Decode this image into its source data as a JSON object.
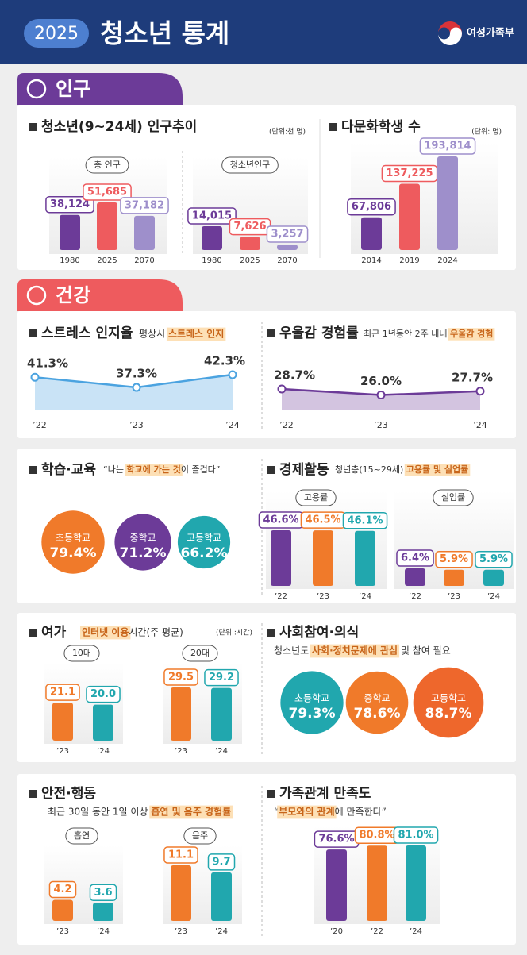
{
  "header": {
    "year": "2025",
    "title": "청소년 통계",
    "ministry": "여성가족부"
  },
  "population": {
    "section": "인구",
    "trend": {
      "type": "bar",
      "title": "청소년(9~24세) 인구추이",
      "unit": "(단위:천 명)",
      "groups": [
        {
          "label": "총 인구",
          "categories": [
            "1980",
            "2025",
            "2070"
          ],
          "values": [
            38124,
            51685,
            37182
          ],
          "value_labels": [
            "38,124",
            "51,685",
            "37,182"
          ],
          "colors": [
            "#6c3b98",
            "#ee5b5e",
            "#9e8fcb"
          ]
        },
        {
          "label": "청소년인구",
          "categories": [
            "1980",
            "2025",
            "2070"
          ],
          "values": [
            14015,
            7626,
            3257
          ],
          "value_labels": [
            "14,015",
            "7,626",
            "3,257"
          ],
          "colors": [
            "#6c3b98",
            "#ee5b5e",
            "#9e8fcb"
          ]
        }
      ]
    },
    "multicultural": {
      "type": "bar",
      "title": "다문화학생 수",
      "unit": "(단위: 명)",
      "groups": [
        {
          "categories": [
            "2014",
            "2019",
            "2024"
          ],
          "values": [
            67806,
            137225,
            193814
          ],
          "value_labels": [
            "67,806",
            "137,225",
            "193,814"
          ],
          "colors": [
            "#6c3b98",
            "#ee5b5e",
            "#9e8fcb"
          ]
        }
      ]
    }
  },
  "health": {
    "section": "건강",
    "stress": {
      "type": "line",
      "title": "스트레스 인지율",
      "note": [
        {
          "text": "평상시 "
        },
        {
          "text": "스트레스 인지",
          "highlight": true
        }
      ],
      "categories": [
        "’22",
        "’23",
        "’24"
      ],
      "values": [
        41.3,
        37.3,
        42.3
      ],
      "value_labels": [
        "41.3%",
        "37.3%",
        "42.3%"
      ],
      "color": "#4ba3e0"
    },
    "depression": {
      "type": "line",
      "title": "우울감 경험률",
      "note": [
        {
          "text": "최근 1년동안 2주 내내 "
        },
        {
          "text": "우울감 경험",
          "highlight": true
        }
      ],
      "categories": [
        "’22",
        "’23",
        "’24"
      ],
      "values": [
        28.7,
        26.0,
        27.7
      ],
      "value_labels": [
        "28.7%",
        "26.0%",
        "27.7%"
      ],
      "color": "#6c3b98"
    }
  },
  "learning": {
    "type": "circle",
    "title": "학습·교육",
    "note": [
      {
        "text": "“나는 "
      },
      {
        "text": "학교에 가는 것",
        "highlight": true
      },
      {
        "text": "이 즐겁다”"
      }
    ],
    "circles": [
      {
        "label": "초등학교",
        "value": 79.4,
        "value_label": "79.4%",
        "color": "#f07a2a"
      },
      {
        "label": "중학교",
        "value": 71.2,
        "value_label": "71.2%",
        "color": "#6c3b98"
      },
      {
        "label": "고등학교",
        "value": 66.2,
        "value_label": "66.2%",
        "color": "#21a7ae"
      }
    ]
  },
  "economy": {
    "type": "bar",
    "title": "경제활동",
    "note": [
      {
        "text": "청년층(15~29세) "
      },
      {
        "text": "고용률 및 실업률",
        "highlight": true
      }
    ],
    "groups": [
      {
        "label": "고용률",
        "categories": [
          "’22",
          "’23",
          "’24"
        ],
        "values": [
          46.6,
          46.5,
          46.1
        ],
        "value_labels": [
          "46.6%",
          "46.5%",
          "46.1%"
        ],
        "colors": [
          "#6c3b98",
          "#f07a2a",
          "#21a7ae"
        ]
      },
      {
        "label": "실업률",
        "categories": [
          "’22",
          "’23",
          "’24"
        ],
        "values": [
          6.4,
          5.9,
          5.9
        ],
        "value_labels": [
          "6.4%",
          "5.9%",
          "5.9%"
        ],
        "colors": [
          "#6c3b98",
          "#f07a2a",
          "#21a7ae"
        ]
      }
    ]
  },
  "leisure": {
    "type": "bar",
    "title": "여가",
    "note": [
      {
        "text": "인터넷 이용",
        "highlight": true
      },
      {
        "text": "시간(주 평균)"
      }
    ],
    "unit": "(단위 :시간)",
    "groups": [
      {
        "label": "10대",
        "categories": [
          "’23",
          "’24"
        ],
        "values": [
          21.1,
          20.0
        ],
        "value_labels": [
          "21.1",
          "20.0"
        ],
        "colors": [
          "#f07a2a",
          "#21a7ae"
        ]
      },
      {
        "label": "20대",
        "categories": [
          "’23",
          "’24"
        ],
        "values": [
          29.5,
          29.2
        ],
        "value_labels": [
          "29.5",
          "29.2"
        ],
        "colors": [
          "#f07a2a",
          "#21a7ae"
        ]
      }
    ]
  },
  "participation": {
    "type": "circle",
    "title": "사회참여·의식",
    "note": [
      {
        "text": "청소년도 "
      },
      {
        "text": "사회·정치문제에 관심",
        "highlight": true
      },
      {
        "text": " 및 참여 필요"
      }
    ],
    "circles": [
      {
        "label": "초등학교",
        "value": 79.3,
        "value_label": "79.3%",
        "color": "#21a7ae"
      },
      {
        "label": "중학교",
        "value": 78.6,
        "value_label": "78.6%",
        "color": "#f07a2a"
      },
      {
        "label": "고등학교",
        "value": 88.7,
        "value_label": "88.7%",
        "color": "#ee672c"
      }
    ]
  },
  "safety": {
    "type": "bar",
    "title": "안전·행동",
    "note": [
      {
        "text": "최근 30일 동안 1일 이상 "
      },
      {
        "text": "흡연 및 음주 경험률",
        "highlight": true
      }
    ],
    "groups": [
      {
        "label": "흡연",
        "categories": [
          "’23",
          "’24"
        ],
        "values": [
          4.2,
          3.6
        ],
        "value_labels": [
          "4.2",
          "3.6"
        ],
        "colors": [
          "#f07a2a",
          "#21a7ae"
        ]
      },
      {
        "label": "음주",
        "categories": [
          "’23",
          "’24"
        ],
        "values": [
          11.1,
          9.7
        ],
        "value_labels": [
          "11.1",
          "9.7"
        ],
        "colors": [
          "#f07a2a",
          "#21a7ae"
        ]
      }
    ]
  },
  "family": {
    "type": "bar",
    "title": "가족관계 만족도",
    "note": [
      {
        "text": "“"
      },
      {
        "text": "부모와의 관계",
        "highlight": true
      },
      {
        "text": "에 만족한다”"
      }
    ],
    "groups": [
      {
        "categories": [
          "’20",
          "’22",
          "’24"
        ],
        "values": [
          76.6,
          80.8,
          81.0
        ],
        "value_labels": [
          "76.6%",
          "80.8%",
          "81.0%"
        ],
        "colors": [
          "#6c3b98",
          "#f07a2a",
          "#21a7ae"
        ]
      }
    ]
  }
}
